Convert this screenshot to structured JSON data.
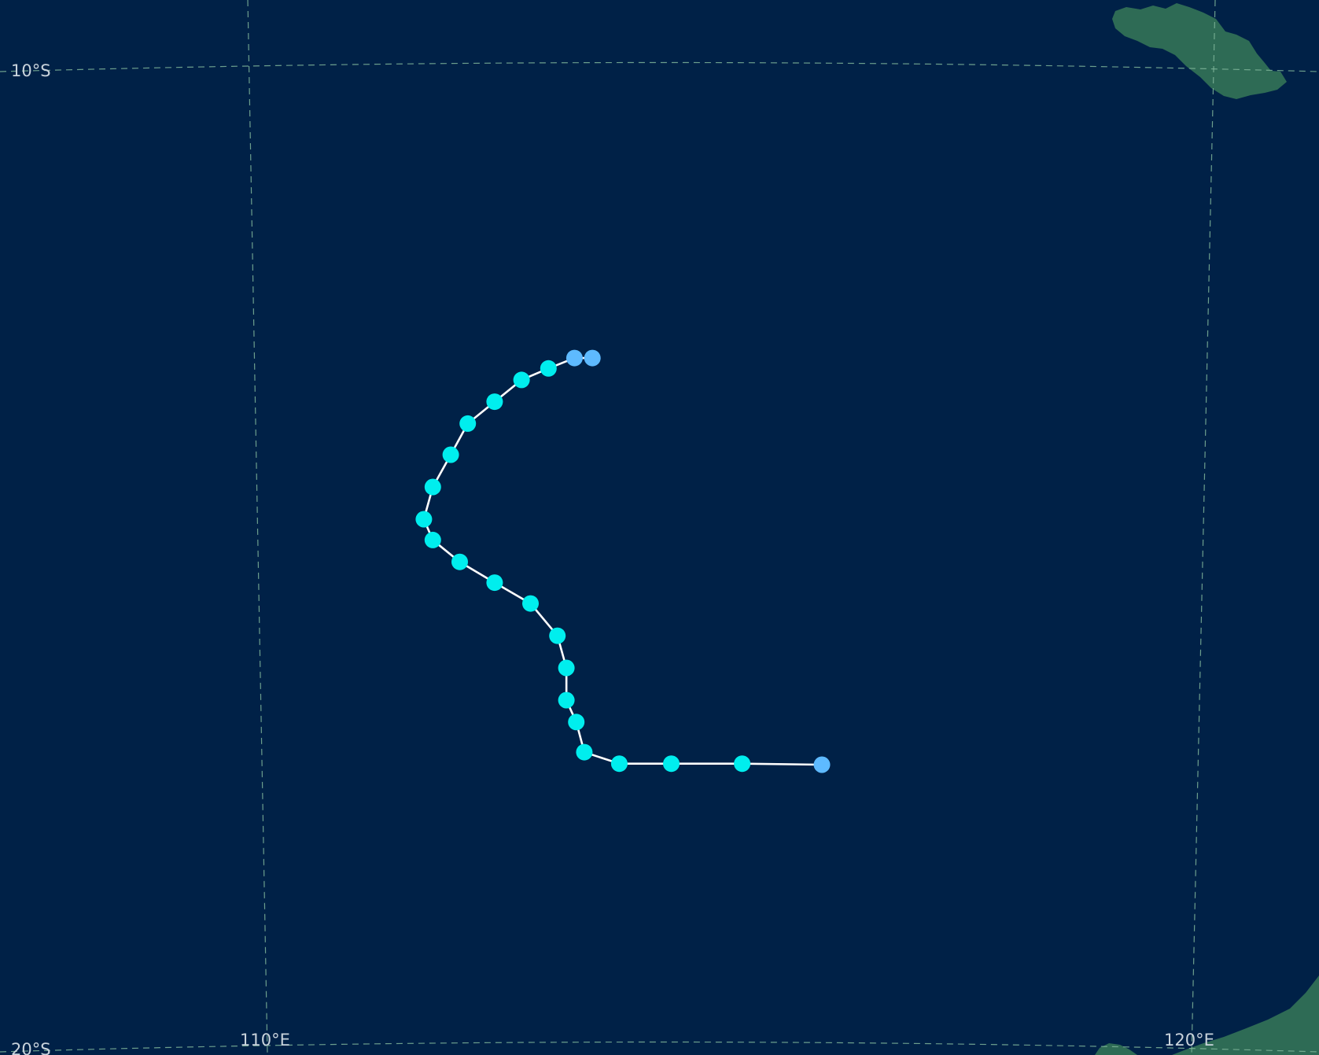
{
  "map": {
    "ocean_color": "#002147",
    "land_color": "#2e6b55",
    "graticule_color": "#7fb59a",
    "track_line_color": "#ffffff",
    "graticule_labels": {
      "lat_10s": "10°S",
      "lat_20s": "20°S",
      "lon_110e": "110°E",
      "lon_120e": "120°E"
    },
    "land_features": [
      {
        "name": "island-north-east"
      },
      {
        "name": "coast-south-east"
      }
    ]
  },
  "track": {
    "category_colors": {
      "cyan": "#00eeee",
      "light-blue": "#5ebaff"
    },
    "points": [
      {
        "lon": 116.36,
        "lat": -16.77,
        "category": "light-blue"
      },
      {
        "lon": 115.47,
        "lat": -16.76,
        "category": "cyan"
      },
      {
        "lon": 114.68,
        "lat": -16.76,
        "category": "cyan"
      },
      {
        "lon": 114.1,
        "lat": -16.76,
        "category": "cyan"
      },
      {
        "lon": 113.71,
        "lat": -16.65,
        "category": "cyan"
      },
      {
        "lon": 113.62,
        "lat": -16.36,
        "category": "cyan"
      },
      {
        "lon": 113.51,
        "lat": -16.15,
        "category": "cyan"
      },
      {
        "lon": 113.51,
        "lat": -15.84,
        "category": "cyan"
      },
      {
        "lon": 113.41,
        "lat": -15.53,
        "category": "cyan"
      },
      {
        "lon": 113.11,
        "lat": -15.22,
        "category": "cyan"
      },
      {
        "lon": 112.71,
        "lat": -15.02,
        "category": "cyan"
      },
      {
        "lon": 112.32,
        "lat": -14.82,
        "category": "cyan"
      },
      {
        "lon": 112.02,
        "lat": -14.61,
        "category": "cyan"
      },
      {
        "lon": 111.92,
        "lat": -14.41,
        "category": "cyan"
      },
      {
        "lon": 112.02,
        "lat": -14.1,
        "category": "cyan"
      },
      {
        "lon": 112.22,
        "lat": -13.79,
        "category": "cyan"
      },
      {
        "lon": 112.41,
        "lat": -13.49,
        "category": "cyan"
      },
      {
        "lon": 112.71,
        "lat": -13.28,
        "category": "cyan"
      },
      {
        "lon": 113.01,
        "lat": -13.07,
        "category": "cyan"
      },
      {
        "lon": 113.31,
        "lat": -12.96,
        "category": "cyan"
      },
      {
        "lon": 113.6,
        "lat": -12.86,
        "category": "light-blue"
      },
      {
        "lon": 113.8,
        "lat": -12.86,
        "category": "light-blue"
      }
    ]
  }
}
